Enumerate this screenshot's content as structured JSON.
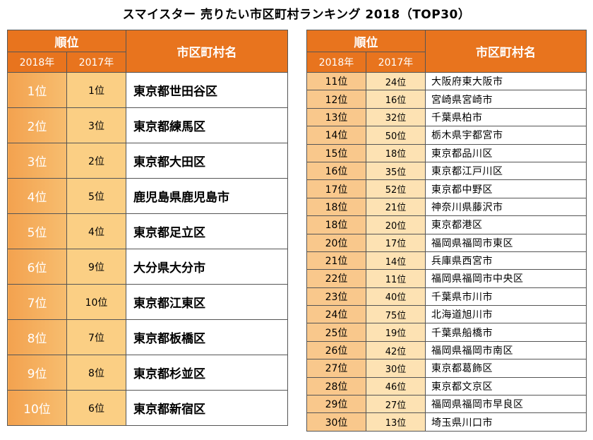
{
  "title": "スマイスター 売りたい市区町村ランキング 2018（TOP30）",
  "headers": {
    "rank": "順位",
    "year2018": "2018年",
    "year2017": "2017年",
    "name": "市区町村名"
  },
  "left_rows": [
    {
      "r2018": "1位",
      "r2017": "1位",
      "name": "東京都世田谷区"
    },
    {
      "r2018": "2位",
      "r2017": "3位",
      "name": "東京都練馬区"
    },
    {
      "r2018": "3位",
      "r2017": "2位",
      "name": "東京都大田区"
    },
    {
      "r2018": "4位",
      "r2017": "5位",
      "name": "鹿児島県鹿児島市"
    },
    {
      "r2018": "5位",
      "r2017": "4位",
      "name": "東京都足立区"
    },
    {
      "r2018": "6位",
      "r2017": "9位",
      "name": "大分県大分市"
    },
    {
      "r2018": "7位",
      "r2017": "10位",
      "name": "東京都江東区"
    },
    {
      "r2018": "8位",
      "r2017": "7位",
      "name": "東京都板橋区"
    },
    {
      "r2018": "9位",
      "r2017": "8位",
      "name": "東京都杉並区"
    },
    {
      "r2018": "10位",
      "r2017": "6位",
      "name": "東京都新宿区"
    }
  ],
  "right_rows": [
    {
      "r2018": "11位",
      "r2017": "24位",
      "name": "大阪府東大阪市"
    },
    {
      "r2018": "12位",
      "r2017": "16位",
      "name": "宮崎県宮崎市"
    },
    {
      "r2018": "13位",
      "r2017": "32位",
      "name": "千葉県柏市"
    },
    {
      "r2018": "14位",
      "r2017": "50位",
      "name": "栃木県宇都宮市"
    },
    {
      "r2018": "15位",
      "r2017": "18位",
      "name": "東京都品川区"
    },
    {
      "r2018": "16位",
      "r2017": "35位",
      "name": "東京都江戸川区"
    },
    {
      "r2018": "17位",
      "r2017": "52位",
      "name": "東京都中野区"
    },
    {
      "r2018": "18位",
      "r2017": "21位",
      "name": "神奈川県藤沢市"
    },
    {
      "r2018": "18位",
      "r2017": "20位",
      "name": "東京都港区"
    },
    {
      "r2018": "20位",
      "r2017": "17位",
      "name": "福岡県福岡市東区"
    },
    {
      "r2018": "21位",
      "r2017": "14位",
      "name": "兵庫県西宮市"
    },
    {
      "r2018": "22位",
      "r2017": "11位",
      "name": "福岡県福岡市中央区"
    },
    {
      "r2018": "23位",
      "r2017": "40位",
      "name": "千葉県市川市"
    },
    {
      "r2018": "24位",
      "r2017": "75位",
      "name": "北海道旭川市"
    },
    {
      "r2018": "25位",
      "r2017": "19位",
      "name": "千葉県船橋市"
    },
    {
      "r2018": "26位",
      "r2017": "42位",
      "name": "福岡県福岡市南区"
    },
    {
      "r2018": "27位",
      "r2017": "30位",
      "name": "東京都葛飾区"
    },
    {
      "r2018": "28位",
      "r2017": "46位",
      "name": "東京都文京区"
    },
    {
      "r2018": "29位",
      "r2017": "27位",
      "name": "福岡県福岡市早良区"
    },
    {
      "r2018": "30位",
      "r2017": "13位",
      "name": "埼玉県川口市"
    }
  ]
}
